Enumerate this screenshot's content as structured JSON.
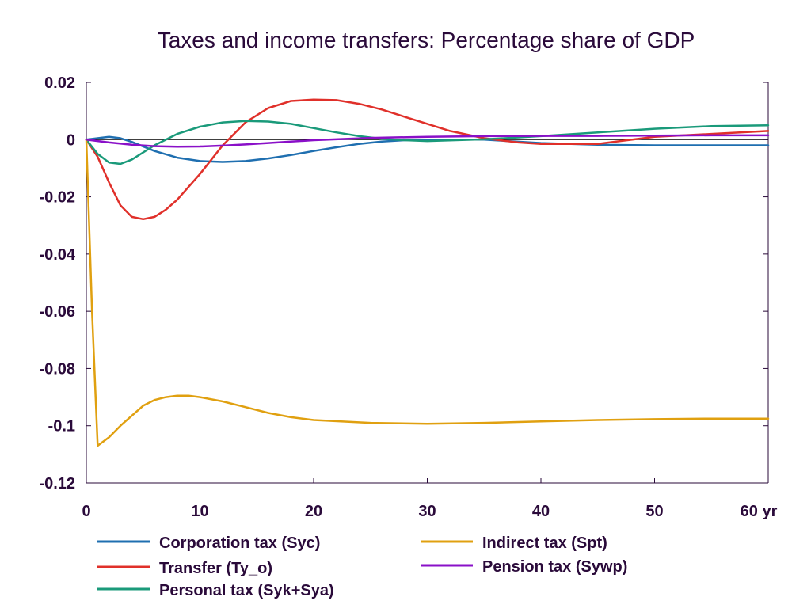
{
  "chart_data": {
    "type": "line",
    "title": "Taxes and income transfers: Percentage share of GDP",
    "xlabel": "",
    "ylabel": "",
    "x_unit_label": "yr",
    "xlim": [
      0,
      60
    ],
    "ylim": [
      -0.12,
      0.02
    ],
    "xticks": [
      0,
      10,
      20,
      30,
      40,
      50,
      60
    ],
    "xtick_labels": [
      "0",
      "10",
      "20",
      "30",
      "40",
      "50",
      "60 yr"
    ],
    "yticks": [
      0.02,
      0,
      -0.02,
      -0.04,
      -0.06,
      -0.08,
      -0.1,
      -0.12
    ],
    "ytick_labels": [
      "0.02",
      "0",
      "-0.02",
      "-0.04",
      "-0.06",
      "-0.08",
      "-0.1",
      "-0.12"
    ],
    "grid": false,
    "zero_line": true,
    "series": [
      {
        "name": "Corporation tax (Syc)",
        "color": "#1f6fb0",
        "x": [
          0,
          1,
          2,
          3,
          4,
          6,
          8,
          10,
          12,
          14,
          16,
          18,
          20,
          22,
          24,
          26,
          28,
          30,
          35,
          40,
          45,
          50,
          55,
          60
        ],
        "y": [
          0,
          0.0005,
          0.001,
          0.0005,
          -0.0008,
          -0.004,
          -0.0063,
          -0.0075,
          -0.0078,
          -0.0075,
          -0.0066,
          -0.0054,
          -0.004,
          -0.0027,
          -0.0015,
          -0.0007,
          -0.0002,
          0,
          0,
          -0.0012,
          -0.0018,
          -0.002,
          -0.002,
          -0.002
        ]
      },
      {
        "name": "Transfer (Ty_o)",
        "color": "#e0302a",
        "x": [
          0,
          1,
          2,
          3,
          4,
          5,
          6,
          7,
          8,
          10,
          12,
          14,
          16,
          18,
          20,
          22,
          24,
          26,
          28,
          30,
          32,
          35,
          38,
          40,
          45,
          50,
          55,
          60
        ],
        "y": [
          0,
          -0.006,
          -0.015,
          -0.023,
          -0.027,
          -0.0278,
          -0.027,
          -0.0245,
          -0.021,
          -0.012,
          -0.002,
          0.006,
          0.011,
          0.0135,
          0.014,
          0.0138,
          0.0125,
          0.0105,
          0.008,
          0.0055,
          0.003,
          0.0005,
          -0.001,
          -0.0015,
          -0.0015,
          0.001,
          0.002,
          0.003
        ]
      },
      {
        "name": "Personal tax (Syk+Sya)",
        "color": "#1a9a7a",
        "x": [
          0,
          1,
          2,
          3,
          4,
          6,
          8,
          10,
          12,
          14,
          16,
          18,
          20,
          22,
          24,
          26,
          28,
          30,
          35,
          40,
          45,
          50,
          55,
          60
        ],
        "y": [
          0,
          -0.005,
          -0.008,
          -0.0085,
          -0.007,
          -0.002,
          0.002,
          0.0045,
          0.006,
          0.0065,
          0.0063,
          0.0055,
          0.004,
          0.0025,
          0.0012,
          0.0003,
          -0.0002,
          -0.0005,
          0.0001,
          0.0012,
          0.0025,
          0.0038,
          0.0047,
          0.005
        ]
      },
      {
        "name": "Indirect tax (Spt)",
        "color": "#e0a010",
        "x": [
          0,
          0.5,
          1,
          2,
          3,
          4,
          5,
          6,
          7,
          8,
          9,
          10,
          12,
          14,
          16,
          18,
          20,
          25,
          30,
          35,
          40,
          45,
          50,
          55,
          60
        ],
        "y": [
          0,
          -0.06,
          -0.107,
          -0.104,
          -0.1,
          -0.0965,
          -0.093,
          -0.091,
          -0.09,
          -0.0895,
          -0.0895,
          -0.09,
          -0.0915,
          -0.0935,
          -0.0955,
          -0.097,
          -0.098,
          -0.099,
          -0.0993,
          -0.099,
          -0.0985,
          -0.098,
          -0.0977,
          -0.0975,
          -0.0975
        ]
      },
      {
        "name": "Pension tax (Sywp)",
        "color": "#8a10c8",
        "x": [
          0,
          2,
          4,
          6,
          8,
          10,
          12,
          14,
          16,
          18,
          20,
          25,
          30,
          35,
          40,
          45,
          50,
          55,
          60
        ],
        "y": [
          0,
          -0.001,
          -0.0018,
          -0.0023,
          -0.0025,
          -0.0024,
          -0.0021,
          -0.0017,
          -0.0012,
          -0.0007,
          -0.0002,
          0.0006,
          0.001,
          0.0012,
          0.0013,
          0.0013,
          0.0014,
          0.0015,
          0.0015
        ]
      }
    ],
    "legend": {
      "placement": "bottom",
      "columns": [
        [
          "Corporation tax (Syc)",
          "Transfer (Ty_o)",
          "Personal tax (Syk+Sya)"
        ],
        [
          "Indirect tax (Spt)",
          "Pension tax (Sywp)"
        ]
      ]
    }
  }
}
